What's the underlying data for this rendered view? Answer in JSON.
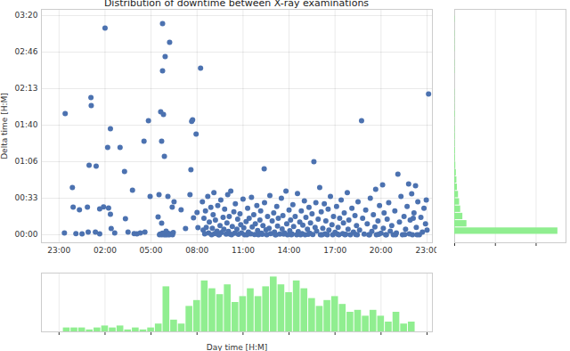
{
  "chart_data": [
    {
      "type": "scatter",
      "title": "Distribution of downtime between X-ray examinations",
      "y_label": "Delta time [H:M]",
      "color": "#4c72b0",
      "marker": "circle",
      "grid": true,
      "xlim": [
        -2.15,
        23.35
      ],
      "ylim": [
        -440,
        12340
      ],
      "xticks": [
        {
          "value": -1,
          "label": "23:00"
        },
        {
          "value": 2,
          "label": "02:00"
        },
        {
          "value": 5,
          "label": "05:00"
        },
        {
          "value": 8,
          "label": "08:00"
        },
        {
          "value": 11,
          "label": "11:00"
        },
        {
          "value": 14,
          "label": "14:00"
        },
        {
          "value": 17,
          "label": "17:00"
        },
        {
          "value": 20,
          "label": "20:00"
        },
        {
          "value": 23,
          "label": "23:00"
        }
      ],
      "yticks": [
        {
          "value": 0,
          "label": "00:00"
        },
        {
          "value": 2000,
          "label": "00:33"
        },
        {
          "value": 4000,
          "label": "01:06"
        },
        {
          "value": 6000,
          "label": "01:40"
        },
        {
          "value": 8000,
          "label": "02:13"
        },
        {
          "value": 10000,
          "label": "02:46"
        },
        {
          "value": 12000,
          "label": "03:20"
        }
      ],
      "x": [
        -0.6,
        -0.65,
        -0.13,
        -0.08,
        0.33,
        0.5,
        0.85,
        0.9,
        1.08,
        0.96,
        1.1,
        1.37,
        1.42,
        1.65,
        1.65,
        2.0,
        2.17,
        2.35,
        2.23,
        2.35,
        2.4,
        2.63,
        2.98,
        3.27,
        3.33,
        3.5,
        3.79,
        4.08,
        4.83,
        4.54,
        4.94,
        5.52,
        5.46,
        5.98,
        5.63,
        5.81,
        5.69,
        5.75,
        5.75,
        5.92,
        6.21,
        5.69,
        5.87,
        6.1,
        6.38,
        6.5,
        6.96,
        7.25,
        7.6,
        7.71,
        7.65,
        7.94,
        8.23,
        7.54,
        7.77,
        8.0,
        8.06,
        5.55,
        5.6,
        5.7,
        5.75,
        5.8,
        5.85,
        5.9,
        5.95,
        6.0,
        6.05,
        6.1,
        6.15,
        6.2,
        6.3,
        6.4,
        6.45,
        4.3,
        3.9,
        1.9,
        0.1,
        4.6,
        8.35,
        8.4,
        8.45,
        8.5,
        8.55,
        8.6,
        8.7,
        8.75,
        8.8,
        8.9,
        8.95,
        9.0,
        9.05,
        9.1,
        9.15,
        9.2,
        9.3,
        9.35,
        9.4,
        9.5,
        9.55,
        9.6,
        9.7,
        9.75,
        9.8,
        9.9,
        9.95,
        10.0,
        10.05,
        10.1,
        10.2,
        10.25,
        10.3,
        10.4,
        10.45,
        10.5,
        10.6,
        10.65,
        10.7,
        10.8,
        10.85,
        10.9,
        11.0,
        11.05,
        11.1,
        11.2,
        11.3,
        11.35,
        11.4,
        11.5,
        11.55,
        11.6,
        11.7,
        11.75,
        11.8,
        11.9,
        11.95,
        12.0,
        12.1,
        12.15,
        12.2,
        12.3,
        12.38,
        12.4,
        12.5,
        12.55,
        12.6,
        12.7,
        12.75,
        12.8,
        12.9,
        13.0,
        13.05,
        13.1,
        13.2,
        13.25,
        13.3,
        13.4,
        13.5,
        13.55,
        13.6,
        13.7,
        13.8,
        13.85,
        13.9,
        14.0,
        14.05,
        14.1,
        14.2,
        14.25,
        14.3,
        14.4,
        14.5,
        14.55,
        14.6,
        14.7,
        14.8,
        14.85,
        14.9,
        15.0,
        15.05,
        15.1,
        15.2,
        15.3,
        15.35,
        15.4,
        15.5,
        15.55,
        15.62,
        15.7,
        15.75,
        15.8,
        15.9,
        16.0,
        16.05,
        16.1,
        16.2,
        16.3,
        16.35,
        16.4,
        16.5,
        16.55,
        16.6,
        16.7,
        16.8,
        16.85,
        16.9,
        17.0,
        17.1,
        17.2,
        17.25,
        17.3,
        17.4,
        17.5,
        17.55,
        17.6,
        17.7,
        17.8,
        17.85,
        17.9,
        18.0,
        18.1,
        18.2,
        18.3,
        18.4,
        18.45,
        18.5,
        18.6,
        18.73,
        18.8,
        18.9,
        19.0,
        19.1,
        19.2,
        19.3,
        19.4,
        19.5,
        19.6,
        19.65,
        19.7,
        19.8,
        19.9,
        20.0,
        20.1,
        20.15,
        20.2,
        20.3,
        20.4,
        20.5,
        20.6,
        20.7,
        20.8,
        20.9,
        21.0,
        21.1,
        21.2,
        21.3,
        21.4,
        21.5,
        21.6,
        21.7,
        21.8,
        21.85,
        21.9,
        22.0,
        22.05,
        22.1,
        22.15,
        22.25,
        22.3,
        22.4,
        22.5,
        22.6,
        22.7,
        22.8,
        22.9,
        23.1,
        23.0,
        22.95,
        9.45,
        10.15,
        11.25,
        12.25,
        13.15,
        13.65,
        14.15,
        14.75,
        15.25,
        16.15,
        17.15,
        17.65,
        18.35,
        19.25,
        19.85,
        20.35,
        20.95,
        21.55,
        22.35
      ],
      "values": [
        6630,
        100,
        2590,
        1510,
        1370,
        50,
        1510,
        150,
        7510,
        3800,
        7070,
        150,
        3760,
        1410,
        50,
        11320,
        4780,
        5800,
        1460,
        1120,
        340,
        100,
        4780,
        3460,
        880,
        150,
        2440,
        50,
        6240,
        5120,
        2100,
        2200,
        980,
        200,
        6730,
        6590,
        5120,
        11560,
        8980,
        9760,
        10540,
        630,
        4290,
        2100,
        1510,
        1800,
        1370,
        340,
        3560,
        6290,
        6200,
        5510,
        9120,
        2200,
        930,
        1220,
        390,
        0,
        40,
        0,
        80,
        20,
        0,
        60,
        0,
        30,
        0,
        90,
        10,
        0,
        50,
        0,
        120,
        100,
        60,
        1520,
        60,
        150,
        1800,
        250,
        900,
        50,
        1300,
        400,
        2100,
        100,
        700,
        1500,
        0,
        350,
        1100,
        2300,
        60,
        800,
        200,
        1600,
        0,
        500,
        1900,
        120,
        950,
        300,
        1400,
        40,
        650,
        2200,
        180,
        1000,
        2390,
        0,
        450,
        1250,
        80,
        1700,
        300,
        850,
        20,
        1150,
        550,
        100,
        1950,
        380,
        0,
        720,
        1450,
        150,
        900,
        50,
        2050,
        420,
        1100,
        10,
        600,
        1600,
        230,
        0,
        800,
        1300,
        90,
        500,
        3610,
        1750,
        270,
        0,
        1000,
        350,
        2150,
        60,
        750,
        1200,
        140,
        0,
        1550,
        480,
        900,
        30,
        2000,
        320,
        1050,
        100,
        2390,
        600,
        0,
        1350,
        220,
        800,
        40,
        1650,
        450,
        1000,
        0,
        2250,
        170,
        700,
        1300,
        60,
        520,
        1850,
        0,
        950,
        300,
        1500,
        80,
        650,
        1150,
        10,
        4000,
        400,
        1750,
        200,
        850,
        2590,
        0,
        1250,
        350,
        1700,
        50,
        750,
        0,
        1400,
        250,
        2100,
        550,
        0,
        1000,
        130,
        1550,
        400,
        0,
        900,
        1900,
        60,
        650,
        1200,
        20,
        2300,
        300,
        800,
        0,
        1450,
        150,
        1050,
        500,
        0,
        1800,
        250,
        6240,
        900,
        40,
        1350,
        600,
        0,
        2000,
        180,
        1100,
        420,
        2490,
        0,
        750,
        1600,
        90,
        2730,
        350,
        1200,
        0,
        850,
        1750,
        200,
        500,
        0,
        1300,
        100,
        3320,
        700,
        2100,
        0,
        1000,
        300,
        1550,
        2780,
        50,
        800,
        2240,
        0,
        900,
        1200,
        2680,
        400,
        1800,
        0,
        950,
        150,
        1450,
        600,
        7700,
        250,
        1900,
        0,
        30,
        0,
        20,
        0,
        40,
        0,
        0,
        20,
        0,
        30,
        0,
        10,
        0,
        20,
        0,
        0,
        10,
        0
      ]
    },
    {
      "type": "histogram",
      "x_label": "Day time [H:M]",
      "color": "#90ee90",
      "grid": true,
      "tick_labels": false,
      "xlim": [
        -2.15,
        23.35
      ],
      "ylim": [
        0,
        30
      ],
      "xticks": [
        -1,
        2,
        5,
        8,
        11,
        14,
        17,
        20,
        23
      ],
      "bins": [
        -0.75,
        -0.25,
        0.25,
        0.75,
        1.25,
        1.75,
        2.25,
        2.75,
        3.25,
        3.75,
        4.25,
        4.75,
        5.25,
        5.75,
        6.25,
        6.75,
        7.25,
        7.75,
        8.25,
        8.75,
        9.25,
        9.75,
        10.25,
        10.75,
        11.25,
        11.75,
        12.25,
        12.75,
        13.25,
        13.75,
        14.25,
        14.75,
        15.25,
        15.75,
        16.25,
        16.75,
        17.25,
        17.75,
        18.25,
        18.75,
        19.25,
        19.75,
        20.25,
        20.75,
        21.25,
        21.75,
        22.25
      ],
      "values": [
        2,
        2,
        2,
        1,
        2,
        3,
        2,
        3,
        1,
        2,
        1,
        2,
        4,
        23,
        6,
        4,
        13,
        16,
        26,
        22,
        19,
        24,
        15,
        18,
        22,
        18,
        23,
        28,
        24,
        20,
        26,
        22,
        17,
        13,
        16,
        18,
        14,
        10,
        11,
        8,
        11,
        8,
        5,
        10,
        4,
        5
      ]
    },
    {
      "type": "histogram",
      "orientation": "horizontal",
      "color": "#90ee90",
      "grid": true,
      "tick_labels": false,
      "xlim": [
        0,
        410
      ],
      "ylim": [
        -440,
        12340
      ],
      "xticks": [
        0,
        150,
        300
      ],
      "bins": [
        0,
        400,
        800,
        1200,
        1600,
        2000,
        2400,
        2800,
        3200,
        3600,
        4000,
        4400,
        4800,
        5200,
        5600,
        6000,
        6400,
        6800,
        7200,
        7600,
        8000,
        8400,
        8800,
        9200,
        9600,
        10000,
        10400,
        10800,
        11200,
        11600,
        12000
      ],
      "values": [
        380,
        45,
        30,
        22,
        18,
        14,
        10,
        8,
        6,
        4,
        3,
        3,
        2,
        2,
        2,
        1,
        2,
        1,
        1,
        1,
        0,
        0,
        1,
        1,
        0,
        1,
        1,
        1,
        0,
        1
      ]
    }
  ]
}
